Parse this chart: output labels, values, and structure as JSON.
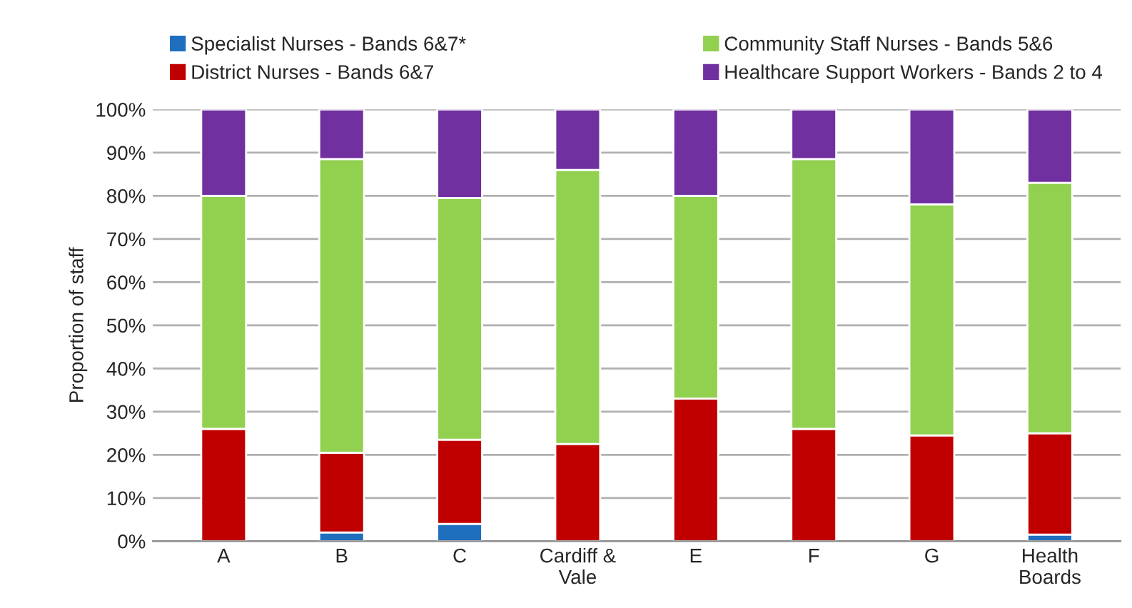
{
  "chart_data": {
    "type": "bar",
    "stacked": true,
    "ylabel": "Proportion of staff",
    "categories": [
      "A",
      "B",
      "C",
      "Cardiff &\nVale",
      "E",
      "F",
      "G",
      "Health\nBoards"
    ],
    "series": [
      {
        "name": "Specialist Nurses - Bands 6&7*",
        "color": "#1f6fbf",
        "values": [
          0,
          2,
          4,
          0,
          0,
          0,
          0,
          1.5
        ]
      },
      {
        "name": "District Nurses - Bands 6&7",
        "color": "#c00000",
        "values": [
          26,
          18.5,
          19.5,
          22.5,
          33,
          26,
          24.5,
          23.5
        ]
      },
      {
        "name": "Community Staff Nurses - Bands 5&6",
        "color": "#92d050",
        "values": [
          54,
          68,
          56,
          63.5,
          47,
          62.5,
          53.5,
          58
        ]
      },
      {
        "name": "Healthcare Support Workers - Bands 2 to 4",
        "color": "#7030a0",
        "values": [
          20,
          11.5,
          20.5,
          14,
          20,
          11.5,
          22,
          17
        ]
      }
    ],
    "ylim": [
      0,
      100
    ],
    "yticks": [
      {
        "value": 0,
        "label": "0%"
      },
      {
        "value": 10,
        "label": "10%"
      },
      {
        "value": 20,
        "label": "20%"
      },
      {
        "value": 30,
        "label": "30%"
      },
      {
        "value": 40,
        "label": "40%"
      },
      {
        "value": 50,
        "label": "50%"
      },
      {
        "value": 60,
        "label": "60%"
      },
      {
        "value": 70,
        "label": "70%"
      },
      {
        "value": 80,
        "label": "80%"
      },
      {
        "value": 90,
        "label": "90%"
      },
      {
        "value": 100,
        "label": "100%"
      }
    ],
    "grid": "y",
    "legend": "top"
  }
}
